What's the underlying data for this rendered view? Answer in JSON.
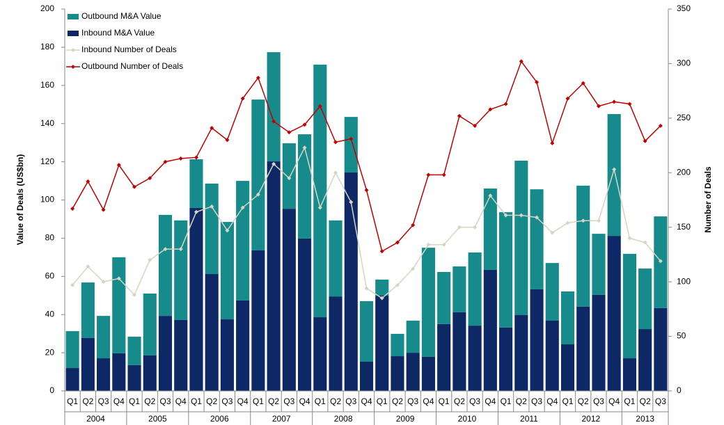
{
  "chart_data": {
    "type": "bar",
    "categories": [
      "Q1",
      "Q2",
      "Q3",
      "Q4",
      "Q1",
      "Q2",
      "Q3",
      "Q4",
      "Q1",
      "Q2",
      "Q3",
      "Q4",
      "Q1",
      "Q2",
      "Q3",
      "Q4",
      "Q1",
      "Q2",
      "Q3",
      "Q4",
      "Q1",
      "Q2",
      "Q3",
      "Q4",
      "Q1",
      "Q2",
      "Q3",
      "Q4",
      "Q1",
      "Q2",
      "Q3",
      "Q4",
      "Q1",
      "Q2",
      "Q3",
      "Q4",
      "Q1",
      "Q2",
      "Q3"
    ],
    "years": [
      {
        "label": "2004",
        "count": 4
      },
      {
        "label": "2005",
        "count": 4
      },
      {
        "label": "2006",
        "count": 4
      },
      {
        "label": "2007",
        "count": 4
      },
      {
        "label": "2008",
        "count": 4
      },
      {
        "label": "2009",
        "count": 4
      },
      {
        "label": "2010",
        "count": 4
      },
      {
        "label": "2011",
        "count": 4
      },
      {
        "label": "2012",
        "count": 4
      },
      {
        "label": "2013",
        "count": 3
      }
    ],
    "ylabel": "Value of Deals (US$bn)",
    "y2label": "Number of Deals",
    "ylim": [
      0,
      200
    ],
    "yticks": [
      0,
      20,
      40,
      60,
      80,
      100,
      120,
      140,
      160,
      180,
      200
    ],
    "y2lim": [
      0,
      350
    ],
    "y2ticks": [
      0,
      50,
      100,
      150,
      200,
      250,
      300,
      350
    ],
    "stacked": true,
    "legend": "upper left",
    "series": [
      {
        "name": "Outbound M&A Value",
        "type": "bar",
        "color": "#178b8c",
        "values": [
          19.3,
          29.1,
          22.2,
          50.3,
          14.9,
          32.4,
          52.9,
          52.1,
          25.5,
          47.4,
          51,
          62.6,
          79,
          57.2,
          34.3,
          54.6,
          132.3,
          39.8,
          29.1,
          31.7,
          8.4,
          11.7,
          16.8,
          57.1,
          27.3,
          24,
          38.3,
          42.6,
          60.4,
          80.9,
          52.4,
          30.2,
          27.7,
          63.4,
          32,
          63.8,
          54.7,
          31.7,
          48
        ]
      },
      {
        "name": "Inbound M&A Value",
        "type": "bar",
        "color": "#0e2866",
        "values": [
          12,
          27.7,
          17.1,
          19.7,
          13.5,
          18.6,
          39.3,
          37.2,
          95.8,
          61.2,
          37.5,
          47.4,
          73.6,
          120.2,
          95.4,
          79.8,
          38.6,
          49.5,
          114.4,
          15.3,
          49.9,
          18.2,
          20,
          17.9,
          35,
          41.2,
          34.2,
          63.4,
          33.2,
          39.7,
          53.2,
          36.8,
          24.4,
          44.1,
          50.3,
          81.2,
          17.1,
          32.4,
          43.4
        ]
      },
      {
        "name": "Inbound Number of Deals",
        "type": "line",
        "axis": "y2",
        "color": "#d6d4c2",
        "values": [
          97,
          114,
          100,
          103,
          88,
          120,
          130,
          130,
          164,
          169,
          147,
          168,
          180,
          208,
          195,
          223,
          168,
          200,
          173,
          94,
          85,
          97,
          112,
          134,
          134,
          150,
          150,
          179,
          161,
          161,
          159,
          145,
          154,
          156,
          156,
          203,
          140,
          136,
          119
        ]
      },
      {
        "name": "Outbound Number of Deals",
        "type": "line",
        "axis": "y2",
        "color": "#c00000",
        "values": [
          167,
          192,
          166,
          207,
          187,
          195,
          210,
          213,
          214,
          241,
          230,
          268,
          287,
          247,
          237,
          244,
          261,
          228,
          231,
          184,
          128,
          136,
          152,
          198,
          198,
          252,
          243,
          258,
          263,
          302,
          283,
          227,
          268,
          282,
          261,
          265,
          263,
          229,
          243
        ]
      }
    ]
  }
}
